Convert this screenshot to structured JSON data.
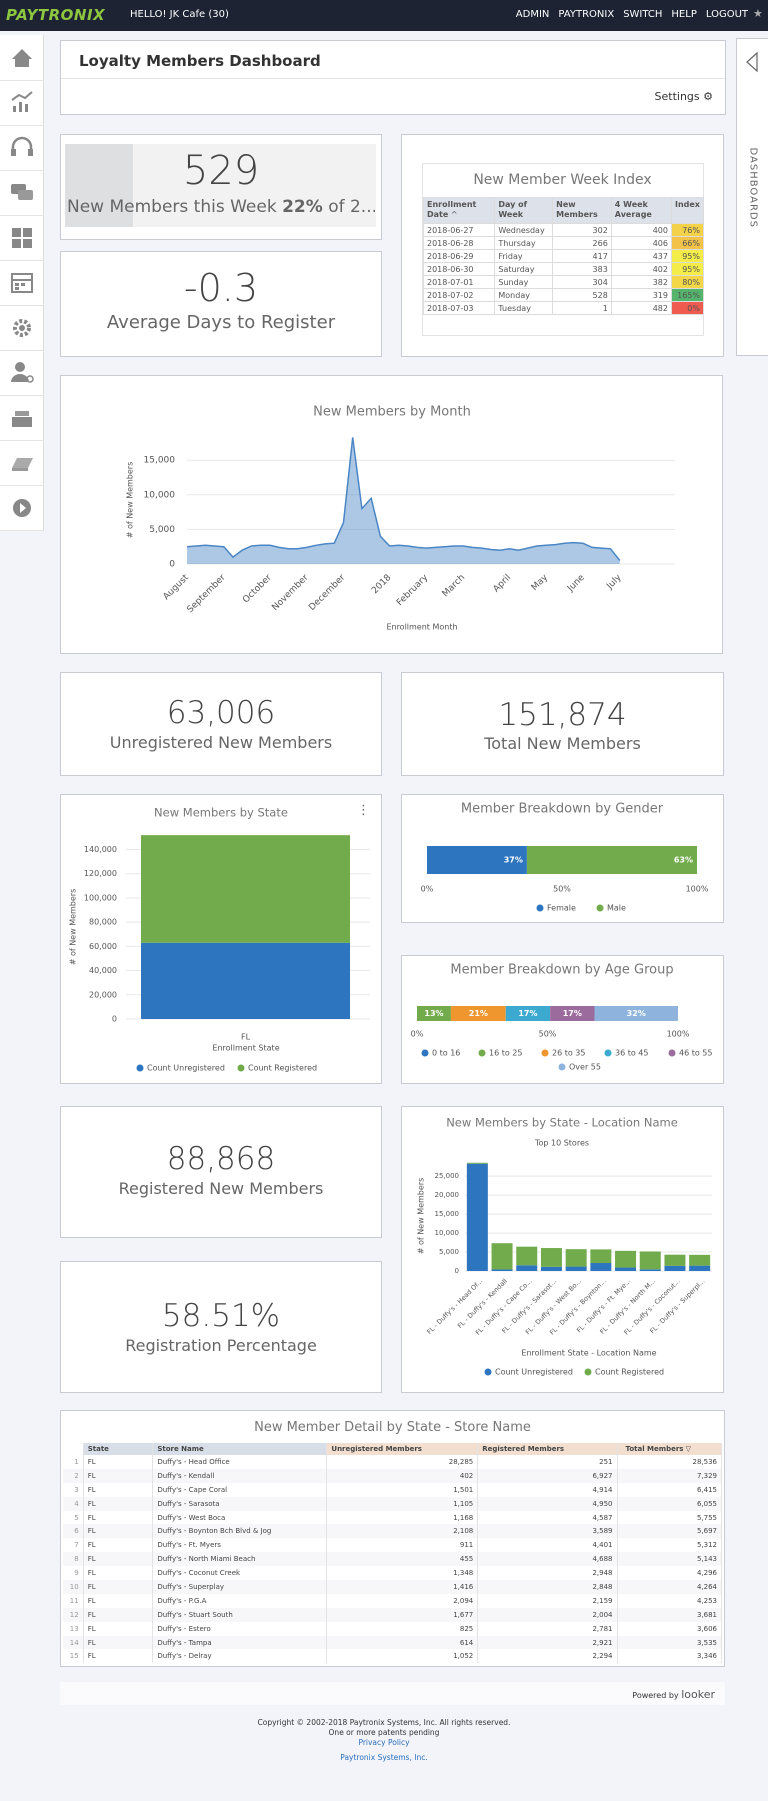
{
  "header": {
    "logo": "PAYTRONIX",
    "greeting": "HELLO! JK Cafe (30)",
    "nav": [
      "ADMIN",
      "PAYTRONIX",
      "SWITCH",
      "HELP",
      "LOGOUT"
    ]
  },
  "sidebar_tab": "DASHBOARDS",
  "dashboard": {
    "title": "Loyalty Members Dashboard",
    "settings": "Settings"
  },
  "tiles": {
    "week": {
      "value": "529",
      "label": "New Members this Week",
      "percent": {
        "value": 22,
        "label": "22%"
      },
      "suffix": "of 2..."
    },
    "days": {
      "value": "-0.3",
      "label": "Average Days to Register"
    },
    "unregistered": {
      "value": "63,006",
      "label": "Unregistered New Members"
    },
    "total": {
      "value": "151,874",
      "label": "Total New Members"
    },
    "registered": {
      "value": "88,868",
      "label": "Registered New Members"
    },
    "percentage": {
      "value": "58.51%",
      "label": "Registration Percentage"
    }
  },
  "week_index": {
    "title": "New Member Week Index",
    "columns": [
      "Enrollment Date",
      "Day of Week",
      "New Members",
      "4 Week Average",
      "Index"
    ],
    "rows": [
      [
        "2018-06-27",
        "Wednesday",
        "302",
        "400",
        {
          "value": 76,
          "label": "76%"
        }
      ],
      [
        "2018-06-28",
        "Thursday",
        "266",
        "406",
        {
          "value": 66,
          "label": "66%"
        }
      ],
      [
        "2018-06-29",
        "Friday",
        "417",
        "437",
        {
          "value": 95,
          "label": "95%"
        }
      ],
      [
        "2018-06-30",
        "Saturday",
        "383",
        "402",
        {
          "value": 95,
          "label": "95%"
        }
      ],
      [
        "2018-07-01",
        "Sunday",
        "304",
        "382",
        {
          "value": 80,
          "label": "80%"
        }
      ],
      [
        "2018-07-02",
        "Monday",
        "528",
        "319",
        {
          "value": 165,
          "label": "165%"
        }
      ],
      [
        "2018-07-03",
        "Tuesday",
        "1",
        "482",
        {
          "value": 0,
          "label": "0%"
        }
      ]
    ]
  },
  "charts": {
    "by_month": {
      "type": "area",
      "title": "New Members by Month",
      "ylabel": "# of New Members",
      "xlabel": "Enrollment Month",
      "color": "#4a86c5",
      "values": [
        2500,
        2600,
        2700,
        2600,
        2500,
        1000,
        2000,
        2600,
        2700,
        2700,
        2400,
        2200,
        2200,
        2400,
        2700,
        2900,
        3000,
        6000,
        18300,
        8000,
        9500,
        4000,
        2600,
        2700,
        2600,
        2400,
        2300,
        2400,
        2500,
        2600,
        2600,
        2400,
        2300,
        2100,
        2000,
        2200,
        2000,
        2300,
        2600,
        2700,
        2800,
        3000,
        3100,
        3000,
        2400,
        2300,
        2200,
        500
      ],
      "xlim": [
        0,
        53
      ],
      "xticks": [
        {
          "value": 0,
          "label": "August"
        },
        {
          "value": 4,
          "label": "September"
        },
        {
          "value": 9,
          "label": "October"
        },
        {
          "value": 13,
          "label": "November"
        },
        {
          "value": 17,
          "label": "December"
        },
        {
          "value": 22,
          "label": "2018"
        },
        {
          "value": 26,
          "label": "February"
        },
        {
          "value": 30,
          "label": "March"
        },
        {
          "value": 35,
          "label": "April"
        },
        {
          "value": 39,
          "label": "May"
        },
        {
          "value": 43,
          "label": "June"
        },
        {
          "value": 47,
          "label": "July"
        }
      ],
      "ylim": [
        0,
        18500
      ],
      "yticks": [
        0,
        {
          "value": 5000,
          "label": "5,000"
        },
        {
          "value": 10000,
          "label": "10,000"
        },
        {
          "value": 15000,
          "label": "15,000"
        }
      ],
      "grid": true
    },
    "by_state": {
      "type": "bar",
      "title": "New Members by State",
      "ylabel": "# of New Members",
      "xlabel": "Enrollment State",
      "categories": [
        "FL"
      ],
      "series": [
        {
          "name": "Count Unregistered",
          "color": "#2e75c0",
          "values": [
            63006
          ]
        },
        {
          "name": "Count Registered",
          "color": "#72ab4b",
          "values": [
            88868
          ]
        }
      ],
      "ylim": [
        0,
        152000
      ],
      "yticks": [
        0,
        {
          "value": 20000,
          "label": "20,000"
        },
        {
          "value": 40000,
          "label": "40,000"
        },
        {
          "value": 60000,
          "label": "60,000"
        },
        {
          "value": 80000,
          "label": "80,000"
        },
        {
          "value": 100000,
          "label": "100,000"
        },
        {
          "value": 120000,
          "label": "120,000"
        },
        {
          "value": 140000,
          "label": "140,000"
        }
      ],
      "grid": true
    },
    "gender": {
      "type": "hbar",
      "title": "Member Breakdown by Gender",
      "series": [
        {
          "name": "Female",
          "color": "#2e75c0",
          "values": [
            37
          ],
          "value_labels": [
            "37%"
          ]
        },
        {
          "name": "Male",
          "color": "#72ab4b",
          "values": [
            63
          ],
          "value_labels": [
            "63%"
          ]
        }
      ],
      "xlim": [
        0,
        100
      ],
      "xticks": [
        {
          "value": 0,
          "label": "0%"
        },
        {
          "value": 50,
          "label": "50%"
        },
        {
          "value": 100,
          "label": "100%"
        }
      ]
    },
    "age_group": {
      "type": "hbar",
      "title": "Member Breakdown by Age Group",
      "series": [
        {
          "name": "0 to 16",
          "color": "#2e75c0",
          "values": [
            0
          ]
        },
        {
          "name": "16 to 25",
          "color": "#72ab4b",
          "values": [
            13
          ],
          "value_labels": [
            "13%"
          ]
        },
        {
          "name": "26 to 35",
          "color": "#f0962e",
          "values": [
            21
          ],
          "value_labels": [
            "21%"
          ]
        },
        {
          "name": "36 to 45",
          "color": "#3ba9d0",
          "values": [
            17
          ],
          "value_labels": [
            "17%"
          ]
        },
        {
          "name": "46 to 55",
          "color": "#9c6b9e",
          "values": [
            17
          ],
          "value_labels": [
            "17%"
          ]
        },
        {
          "name": "Over 55",
          "color": "#8eb3dd",
          "values": [
            32
          ],
          "value_labels": [
            "32%"
          ]
        }
      ],
      "xlim": [
        0,
        100
      ],
      "xticks": [
        {
          "value": 0,
          "label": "0%"
        },
        {
          "value": 50,
          "label": "50%"
        },
        {
          "value": 100,
          "label": "100%"
        }
      ]
    },
    "location": {
      "type": "bar",
      "title": "New Members by State - Location Name",
      "subtitle": "Top 10 Stores",
      "ylabel": "# of New Members",
      "xlabel": "Enrollment State - Location Name",
      "categories": [
        "FL - Duffy's - Head Of...",
        "FL - Duffy's - Kendall",
        "FL - Duffy's - Cape Co...",
        "FL - Duffy's - Sarasot...",
        "FL - Duffy's - West Bo...",
        "FL - Duffy's - Boynton...",
        "FL - Duffy's - Ft. Mye...",
        "FL - Duffy's - North M...",
        "FL - Duffy's - Coconut...",
        "FL - Duffy's - Superpl..."
      ],
      "series": [
        {
          "name": "Count Unregistered",
          "color": "#2e75c0",
          "values": [
            28285,
            402,
            1501,
            1105,
            1168,
            2108,
            911,
            455,
            1348,
            1416
          ]
        },
        {
          "name": "Count Registered",
          "color": "#72ab4b",
          "values": [
            251,
            6927,
            4914,
            4950,
            4587,
            3589,
            4401,
            4688,
            2948,
            2848
          ]
        }
      ],
      "ylim": [
        0,
        29000
      ],
      "yticks": [
        0,
        {
          "value": 5000,
          "label": "5,000"
        },
        {
          "value": 10000,
          "label": "10,000"
        },
        {
          "value": 15000,
          "label": "15,000"
        },
        {
          "value": 20000,
          "label": "20,000"
        },
        {
          "value": 25000,
          "label": "25,000"
        }
      ],
      "grid": true
    }
  },
  "detail": {
    "title": "New Member Detail by State - Store Name",
    "columns": [
      "State",
      "Store Name",
      "Unregistered Members",
      "Registered Members",
      "Total Members"
    ],
    "rows": [
      [
        "1",
        "FL",
        "Duffy's - Head Office",
        "28,285",
        "251",
        "28,536"
      ],
      [
        "2",
        "FL",
        "Duffy's - Kendall",
        "402",
        "6,927",
        "7,329"
      ],
      [
        "3",
        "FL",
        "Duffy's - Cape Coral",
        "1,501",
        "4,914",
        "6,415"
      ],
      [
        "4",
        "FL",
        "Duffy's - Sarasota",
        "1,105",
        "4,950",
        "6,055"
      ],
      [
        "5",
        "FL",
        "Duffy's - West Boca",
        "1,168",
        "4,587",
        "5,755"
      ],
      [
        "6",
        "FL",
        "Duffy's - Boynton Bch Blvd & Jog",
        "2,108",
        "3,589",
        "5,697"
      ],
      [
        "7",
        "FL",
        "Duffy's - Ft. Myers",
        "911",
        "4,401",
        "5,312"
      ],
      [
        "8",
        "FL",
        "Duffy's - North Miami Beach",
        "455",
        "4,688",
        "5,143"
      ],
      [
        "9",
        "FL",
        "Duffy's - Coconut Creek",
        "1,348",
        "2,948",
        "4,296"
      ],
      [
        "10",
        "FL",
        "Duffy's - Superplay",
        "1,416",
        "2,848",
        "4,264"
      ],
      [
        "11",
        "FL",
        "Duffy's - P.G.A",
        "2,094",
        "2,159",
        "4,253"
      ],
      [
        "12",
        "FL",
        "Duffy's - Stuart South",
        "1,677",
        "2,004",
        "3,681"
      ],
      [
        "13",
        "FL",
        "Duffy's - Estero",
        "825",
        "2,781",
        "3,606"
      ],
      [
        "14",
        "FL",
        "Duffy's - Tampa",
        "614",
        "2,921",
        "3,535"
      ],
      [
        "15",
        "FL",
        "Duffy's - Delray",
        "1,052",
        "2,294",
        "3,346"
      ]
    ]
  },
  "footer": {
    "powered": "Powered by",
    "brand": "looker",
    "copyright": "Copyright © 2002-2018 Paytronix Systems, Inc. All rights reserved.",
    "patents": "One or more patents pending",
    "privacy": "Privacy Policy",
    "company": "Paytronix Systems, Inc."
  }
}
